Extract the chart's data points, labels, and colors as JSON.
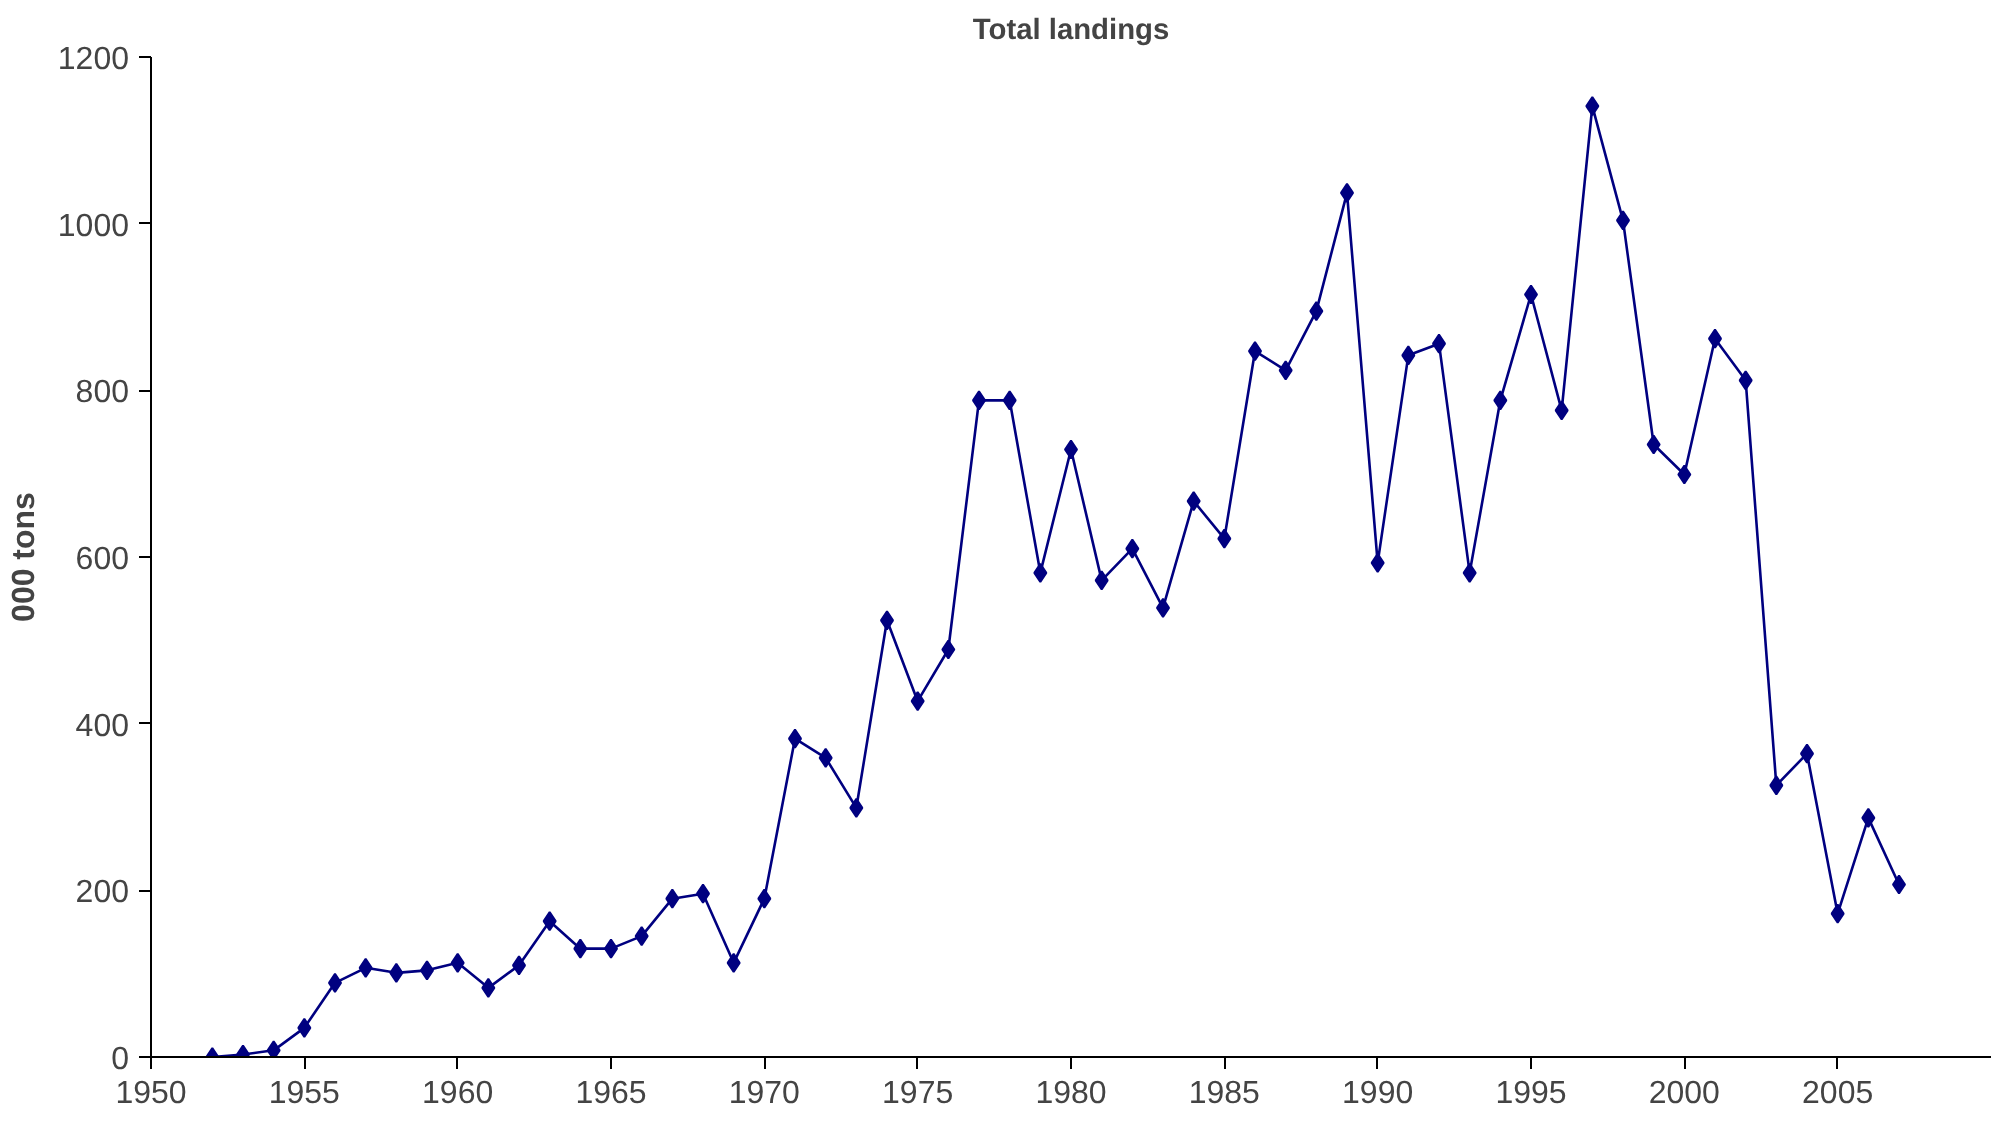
{
  "chart_data": {
    "type": "line",
    "title": "Total landings",
    "ylabel": "000 tons",
    "x": [
      1952,
      1953,
      1954,
      1955,
      1956,
      1957,
      1958,
      1959,
      1960,
      1961,
      1962,
      1963,
      1964,
      1965,
      1966,
      1967,
      1968,
      1969,
      1970,
      1971,
      1972,
      1973,
      1974,
      1975,
      1976,
      1977,
      1978,
      1979,
      1980,
      1981,
      1982,
      1983,
      1984,
      1985,
      1986,
      1987,
      1988,
      1989,
      1990,
      1991,
      1992,
      1993,
      1994,
      1995,
      1996,
      1997,
      1998,
      1999,
      2000,
      2001,
      2002,
      2003,
      2004,
      2005,
      2006,
      2007
    ],
    "series": [
      {
        "color": "#000080",
        "values": [
          0,
          3,
          8,
          35,
          89,
          107,
          101,
          104,
          113,
          83,
          110,
          163,
          130,
          130,
          145,
          190,
          196,
          113,
          190,
          382,
          359,
          299,
          524,
          427,
          489,
          788,
          788,
          581,
          729,
          572,
          610,
          539,
          667,
          622,
          847,
          824,
          895,
          1037,
          593,
          842,
          856,
          581,
          788,
          915,
          776,
          1141,
          1004,
          735,
          699,
          862,
          812,
          326,
          364,
          172,
          287,
          207
        ]
      }
    ],
    "xlim": [
      1950,
      2010
    ],
    "xticks": [
      1950,
      1955,
      1960,
      1965,
      1970,
      1975,
      1980,
      1985,
      1990,
      1995,
      2000,
      2005
    ],
    "ylim": [
      0,
      1200
    ],
    "yticks": [
      0,
      200,
      400,
      600,
      800,
      1000,
      1200
    ],
    "grid": false,
    "marker": "diamond",
    "line_style": "solid"
  }
}
